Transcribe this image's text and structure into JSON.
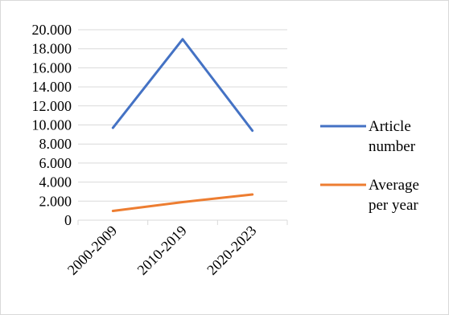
{
  "chart_data": {
    "type": "line",
    "title": "",
    "xlabel": "",
    "ylabel": "",
    "categories": [
      "2000-2009",
      "2010-2019",
      "2020-2023"
    ],
    "ylim": [
      0,
      20000
    ],
    "ytick_labels": [
      "0",
      "2.000",
      "4.000",
      "6.000",
      "8.000",
      "10.000",
      "12.000",
      "14.000",
      "16.000",
      "18.000",
      "20.000"
    ],
    "grid": true,
    "legend_position": "right",
    "series": [
      {
        "name": "Article number",
        "legend_lines": [
          "Article",
          "number"
        ],
        "color": "#4472c4",
        "values": [
          9700,
          19000,
          9400
        ]
      },
      {
        "name": "Average per year",
        "legend_lines": [
          "Average",
          "per year"
        ],
        "color": "#ed7d31",
        "values": [
          970,
          1900,
          2700
        ]
      }
    ]
  }
}
